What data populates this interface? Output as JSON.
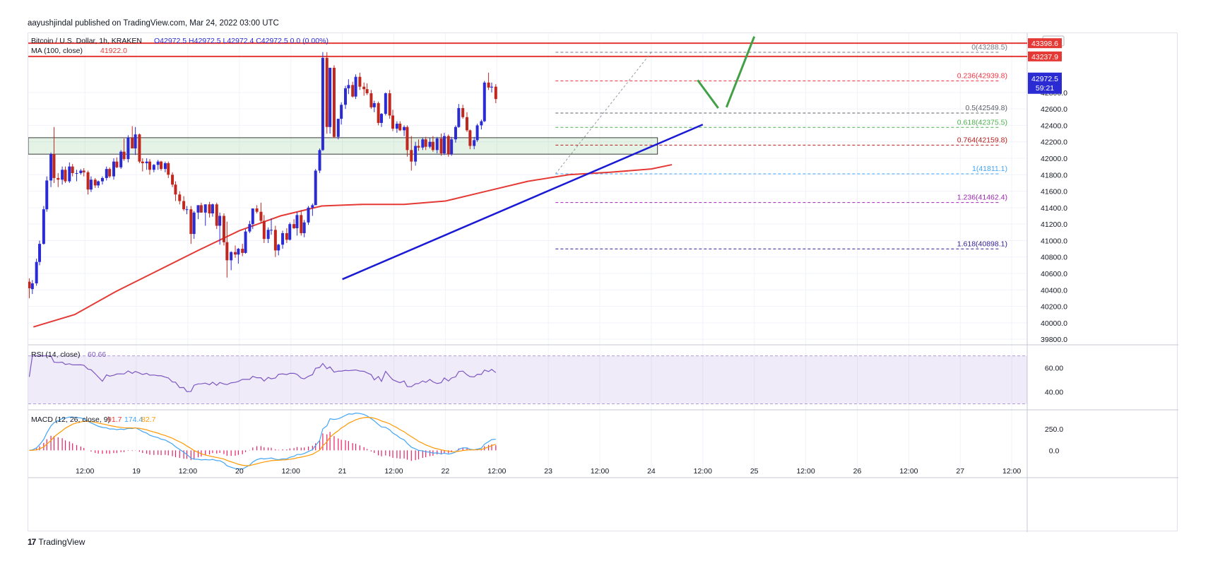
{
  "header": {
    "publisher": "aayushjindal published on TradingView.com, Mar 24, 2022 03:00 UTC"
  },
  "chart_data": [
    {
      "type": "candlestick",
      "pane": "price",
      "title": "Bitcoin / U.S. Dollar, 1h, KRAKEN",
      "ohlc_legend": {
        "open": "O42972.5",
        "high": "H42972.5",
        "low": "L42972.4",
        "close": "C42972.5",
        "change": "0.0 (0.00%)"
      },
      "indicator_label": "MA (100, close)",
      "indicator_value": "41922.0",
      "currency": "USD",
      "y_ticks": [
        39800,
        40000,
        40200,
        40400,
        40600,
        40800,
        41000,
        41200,
        41400,
        41600,
        41800,
        42000,
        42200,
        42400,
        42600,
        42800
      ],
      "y_tick_labels": [
        "39800.0",
        "40000.0",
        "40200.0",
        "40400.0",
        "40600.0",
        "40800.0",
        "41000.0",
        "41200.0",
        "41400.0",
        "41600.0",
        "41800.0",
        "42000.0",
        "42200.0",
        "42400.0",
        "42600.0",
        "42800.0"
      ],
      "ylim": [
        39750,
        43520
      ],
      "price_tag": {
        "value": "42972.5",
        "countdown": "59:21"
      },
      "resistance_lines": [
        {
          "value": 43398.6,
          "label": "43398.6"
        },
        {
          "value": 43237.9,
          "label": "43237.9"
        }
      ],
      "fibonacci": [
        {
          "ratio": "0",
          "value": 43288.5,
          "color": "#787b86",
          "label": "0(43288.5)"
        },
        {
          "ratio": "0.236",
          "value": 42939.8,
          "color": "#f23645",
          "label": "0.236(42939.8)"
        },
        {
          "ratio": "0.5",
          "value": 42549.8,
          "color": "#5d606b",
          "label": "0.5(42549.8)"
        },
        {
          "ratio": "0.618",
          "value": 42375.5,
          "color": "#4caf50",
          "label": "0.618(42375.5)"
        },
        {
          "ratio": "0.764",
          "value": 42159.8,
          "color": "#b71c1c",
          "label": "0.764(42159.8)"
        },
        {
          "ratio": "1",
          "value": 41811.1,
          "color": "#42a5f5",
          "label": "1(41811.1)"
        },
        {
          "ratio": "1.236",
          "value": 41462.4,
          "color": "#9c27b0",
          "label": "1.236(41462.4)"
        },
        {
          "ratio": "1.618",
          "value": 40898.1,
          "color": "#311b92",
          "label": "1.618(40898.1)"
        }
      ],
      "support_zone": [
        42050,
        42250
      ],
      "trendline": [
        [
          21,
          40530
        ],
        [
          24.5,
          42410
        ]
      ],
      "projection_up": [
        [
          24.45,
          42950
        ],
        [
          24.65,
          42610
        ],
        [
          24.73,
          42620
        ],
        [
          25.0,
          43480
        ]
      ],
      "ma100": [
        [
          18.0,
          39950
        ],
        [
          18.4,
          40100
        ],
        [
          18.8,
          40380
        ],
        [
          19.2,
          40630
        ],
        [
          19.6,
          40880
        ],
        [
          20.0,
          41120
        ],
        [
          20.4,
          41300
        ],
        [
          20.8,
          41420
        ],
        [
          21.2,
          41440
        ],
        [
          21.6,
          41440
        ],
        [
          22.0,
          41480
        ],
        [
          22.4,
          41600
        ],
        [
          22.8,
          41720
        ],
        [
          23.2,
          41800
        ],
        [
          23.6,
          41830
        ],
        [
          24.0,
          41870
        ],
        [
          24.2,
          41922
        ]
      ],
      "candles": [
        [
          17.96,
          40500,
          40540,
          40300,
          40420
        ],
        [
          17.99,
          40410,
          40520,
          40350,
          40480
        ],
        [
          18.03,
          40480,
          40780,
          40450,
          40740
        ],
        [
          18.06,
          40740,
          41000,
          40700,
          40960
        ],
        [
          18.1,
          40960,
          41420,
          40950,
          41380
        ],
        [
          18.13,
          41380,
          41780,
          41350,
          41730
        ],
        [
          18.17,
          41730,
          42070,
          41650,
          42050
        ],
        [
          18.2,
          42050,
          42380,
          41700,
          41760
        ],
        [
          18.24,
          41760,
          41820,
          41650,
          41740
        ],
        [
          18.28,
          41740,
          41900,
          41680,
          41860
        ],
        [
          18.31,
          41860,
          41900,
          41700,
          41720
        ],
        [
          18.35,
          41720,
          41950,
          41700,
          41900
        ],
        [
          18.38,
          41900,
          41930,
          41780,
          41820
        ],
        [
          18.42,
          41820,
          41860,
          41720,
          41820
        ],
        [
          18.46,
          41820,
          41870,
          41800,
          41850
        ],
        [
          18.49,
          41850,
          41880,
          41780,
          41830
        ],
        [
          18.53,
          41830,
          41850,
          41560,
          41620
        ],
        [
          18.56,
          41620,
          41780,
          41590,
          41740
        ],
        [
          18.6,
          41740,
          41760,
          41640,
          41670
        ],
        [
          18.63,
          41670,
          41730,
          41640,
          41720
        ],
        [
          18.67,
          41720,
          41780,
          41680,
          41760
        ],
        [
          18.71,
          41760,
          41900,
          41730,
          41870
        ],
        [
          18.74,
          41870,
          41890,
          41760,
          41780
        ],
        [
          18.78,
          41780,
          42000,
          41740,
          41960
        ],
        [
          18.81,
          41960,
          42010,
          41880,
          41890
        ],
        [
          18.85,
          41890,
          42100,
          41870,
          42080
        ],
        [
          18.88,
          42080,
          42240,
          41970,
          41990
        ],
        [
          18.92,
          41990,
          42280,
          41950,
          42250
        ],
        [
          18.96,
          42250,
          42390,
          42120,
          42120
        ],
        [
          18.99,
          42120,
          42380,
          42040,
          42290
        ],
        [
          19.03,
          42290,
          42300,
          41940,
          41960
        ],
        [
          19.06,
          41960,
          42000,
          41840,
          41940
        ],
        [
          19.1,
          41940,
          42000,
          41860,
          41960
        ],
        [
          19.13,
          41960,
          41990,
          41800,
          41860
        ],
        [
          19.17,
          41860,
          41930,
          41830,
          41920
        ],
        [
          19.21,
          41920,
          41980,
          41860,
          41960
        ],
        [
          19.24,
          41960,
          41970,
          41850,
          41870
        ],
        [
          19.28,
          41870,
          41960,
          41830,
          41940
        ],
        [
          19.31,
          41940,
          41960,
          41760,
          41800
        ],
        [
          19.35,
          41800,
          41830,
          41650,
          41680
        ],
        [
          19.38,
          41680,
          41720,
          41480,
          41560
        ],
        [
          19.42,
          41560,
          41600,
          41440,
          41480
        ],
        [
          19.46,
          41480,
          41540,
          41360,
          41380
        ],
        [
          19.49,
          41380,
          41420,
          41320,
          41380
        ],
        [
          19.53,
          41380,
          41420,
          40960,
          41080
        ],
        [
          19.56,
          41080,
          41360,
          41020,
          41340
        ],
        [
          19.6,
          41340,
          41430,
          41260,
          41430
        ],
        [
          19.63,
          41430,
          41460,
          41340,
          41340
        ],
        [
          19.67,
          41340,
          41440,
          41180,
          41440
        ],
        [
          19.71,
          41440,
          41470,
          41280,
          41330
        ],
        [
          19.74,
          41330,
          41450,
          41290,
          41440
        ],
        [
          19.78,
          41440,
          41460,
          41140,
          41180
        ],
        [
          19.81,
          41180,
          41340,
          40950,
          41300
        ],
        [
          19.85,
          41300,
          41330,
          40940,
          40980
        ],
        [
          19.88,
          40980,
          41230,
          40550,
          40760
        ],
        [
          19.92,
          40760,
          40870,
          40640,
          40860
        ],
        [
          19.96,
          40860,
          40940,
          40790,
          40830
        ],
        [
          19.99,
          40830,
          40910,
          40720,
          40900
        ],
        [
          20.03,
          40900,
          40960,
          40810,
          40850
        ],
        [
          20.06,
          40850,
          41140,
          40840,
          41110
        ],
        [
          20.1,
          41110,
          41240,
          41090,
          41200
        ],
        [
          20.13,
          41200,
          41390,
          41140,
          41390
        ],
        [
          20.17,
          41390,
          41430,
          41330,
          41350
        ],
        [
          20.21,
          41350,
          41460,
          41210,
          41240
        ],
        [
          20.24,
          41240,
          41310,
          40970,
          41020
        ],
        [
          20.28,
          41020,
          41160,
          40970,
          41130
        ],
        [
          20.31,
          41130,
          41270,
          41070,
          41130
        ],
        [
          20.35,
          41130,
          41180,
          40800,
          40880
        ],
        [
          20.38,
          40880,
          40960,
          40820,
          40950
        ],
        [
          20.42,
          40950,
          41120,
          40900,
          41090
        ],
        [
          20.46,
          41090,
          41150,
          40970,
          41010
        ],
        [
          20.49,
          41010,
          41220,
          41000,
          41200
        ],
        [
          20.53,
          41200,
          41260,
          41140,
          41150
        ],
        [
          20.56,
          41150,
          41350,
          41060,
          41310
        ],
        [
          20.6,
          41310,
          41370,
          41060,
          41090
        ],
        [
          20.63,
          41090,
          41250,
          41040,
          41220
        ],
        [
          20.67,
          41220,
          41420,
          41190,
          41400
        ],
        [
          20.71,
          41400,
          41450,
          41300,
          41430
        ],
        [
          20.74,
          41430,
          41870,
          41430,
          41850
        ],
        [
          20.78,
          41850,
          42120,
          41820,
          42100
        ],
        [
          20.81,
          42100,
          43290,
          42090,
          43220
        ],
        [
          20.85,
          43220,
          43290,
          42300,
          42380
        ],
        [
          20.88,
          42380,
          43100,
          42300,
          43100
        ],
        [
          20.92,
          43100,
          43130,
          42250,
          42260
        ],
        [
          20.96,
          42260,
          42480,
          42230,
          42480
        ],
        [
          20.99,
          42480,
          42680,
          42410,
          42650
        ],
        [
          21.03,
          42650,
          42880,
          42600,
          42850
        ],
        [
          21.06,
          42850,
          42960,
          42780,
          42890
        ],
        [
          21.1,
          42890,
          42930,
          42740,
          42750
        ],
        [
          21.13,
          42750,
          43020,
          42720,
          42990
        ],
        [
          21.17,
          42990,
          43040,
          42830,
          42870
        ],
        [
          21.21,
          42870,
          42920,
          42760,
          42840
        ],
        [
          21.24,
          42840,
          42910,
          42770,
          42790
        ]
      ],
      "candles_2": [
        [
          21.28,
          42790,
          42830,
          42600,
          42620
        ],
        [
          21.31,
          42620,
          42700,
          42560,
          42670
        ],
        [
          21.35,
          42670,
          42690,
          42400,
          42430
        ],
        [
          21.38,
          42430,
          42550,
          42380,
          42540
        ],
        [
          21.42,
          42540,
          42800,
          42520,
          42790
        ],
        [
          21.46,
          42790,
          42830,
          42480,
          42520
        ],
        [
          21.49,
          42520,
          42590,
          42330,
          42360
        ],
        [
          21.53,
          42360,
          42450,
          42310,
          42420
        ],
        [
          21.56,
          42420,
          42450,
          42330,
          42340
        ],
        [
          21.6,
          42340,
          42400,
          42270,
          42380
        ],
        [
          21.63,
          42380,
          42400,
          42020,
          42100
        ],
        [
          21.67,
          42100,
          42270,
          41850,
          41960
        ],
        [
          21.71,
          41960,
          42200,
          41910,
          42150
        ],
        [
          21.74,
          42150,
          42230,
          42090,
          42130
        ],
        [
          21.78,
          42130,
          42250,
          42100,
          42230
        ],
        [
          21.81,
          42230,
          42260,
          42100,
          42140
        ],
        [
          21.85,
          42140,
          42250,
          42120,
          42200
        ],
        [
          21.88,
          42200,
          42270,
          42080,
          42100
        ],
        [
          21.92,
          42100,
          42260,
          42060,
          42240
        ],
        [
          21.96,
          42240,
          42300,
          42030,
          42060
        ],
        [
          21.99,
          42060,
          42310,
          42040,
          42270
        ],
        [
          22.03,
          42270,
          42290,
          42020,
          42050
        ],
        [
          22.06,
          42050,
          42260,
          42030,
          42230
        ],
        [
          22.1,
          42230,
          42400,
          42190,
          42380
        ],
        [
          22.13,
          42380,
          42660,
          42370,
          42610
        ],
        [
          22.17,
          42610,
          42650,
          42480,
          42500
        ],
        [
          22.21,
          42500,
          42560,
          42320,
          42340
        ],
        [
          22.24,
          42340,
          42350,
          42110,
          42150
        ],
        [
          22.28,
          42150,
          42260,
          42110,
          42220
        ],
        [
          22.31,
          42220,
          42420,
          42200,
          42400
        ],
        [
          22.35,
          42400,
          42470,
          42350,
          42450
        ],
        [
          22.38,
          42450,
          42940,
          42440,
          42920
        ],
        [
          22.42,
          42920,
          43040,
          42830,
          42860
        ],
        [
          22.45,
          42860,
          42920,
          42800,
          42870
        ],
        [
          22.49,
          42870,
          42900,
          42670,
          42720
        ]
      ]
    },
    {
      "type": "line",
      "pane": "rsi",
      "label": "RSI (14, close)",
      "value": "60.66",
      "y_tick_labels": [
        "60.00",
        "40.00"
      ],
      "ylim": [
        25,
        78
      ],
      "band": [
        30,
        70
      ]
    },
    {
      "type": "line+histogram",
      "pane": "macd",
      "label": "MACD (12, 26, close, 9)",
      "values": [
        "91.7",
        "174.4",
        "82.7"
      ],
      "y_tick_labels": [
        "250.0",
        "0.0"
      ],
      "ylim": [
        -120,
        470
      ]
    }
  ],
  "time_axis": {
    "labels": [
      "12:00",
      "19",
      "12:00",
      "20",
      "12:00",
      "21",
      "12:00",
      "22",
      "12:00",
      "23",
      "12:00",
      "24",
      "12:00",
      "25",
      "12:00",
      "26",
      "12:00",
      "27",
      "12:00"
    ],
    "positions": [
      18.5,
      19,
      19.5,
      20,
      20.5,
      21,
      21.5,
      22,
      22.5,
      23,
      23.5,
      24,
      24.5,
      25,
      25.5,
      26,
      26.5,
      27,
      27.5
    ]
  },
  "footer": {
    "logo_text": "TradingView",
    "logo_mark": "17"
  },
  "colors": {
    "up": "#2b2bd4",
    "down": "#c0281f",
    "ma": "#e53935",
    "trend": "#1a1ad6",
    "projection": "#43a047",
    "rsi": "#7e57c2",
    "macd": "#42a5f5",
    "signal": "#ff9800",
    "hist": "#e91e63"
  }
}
